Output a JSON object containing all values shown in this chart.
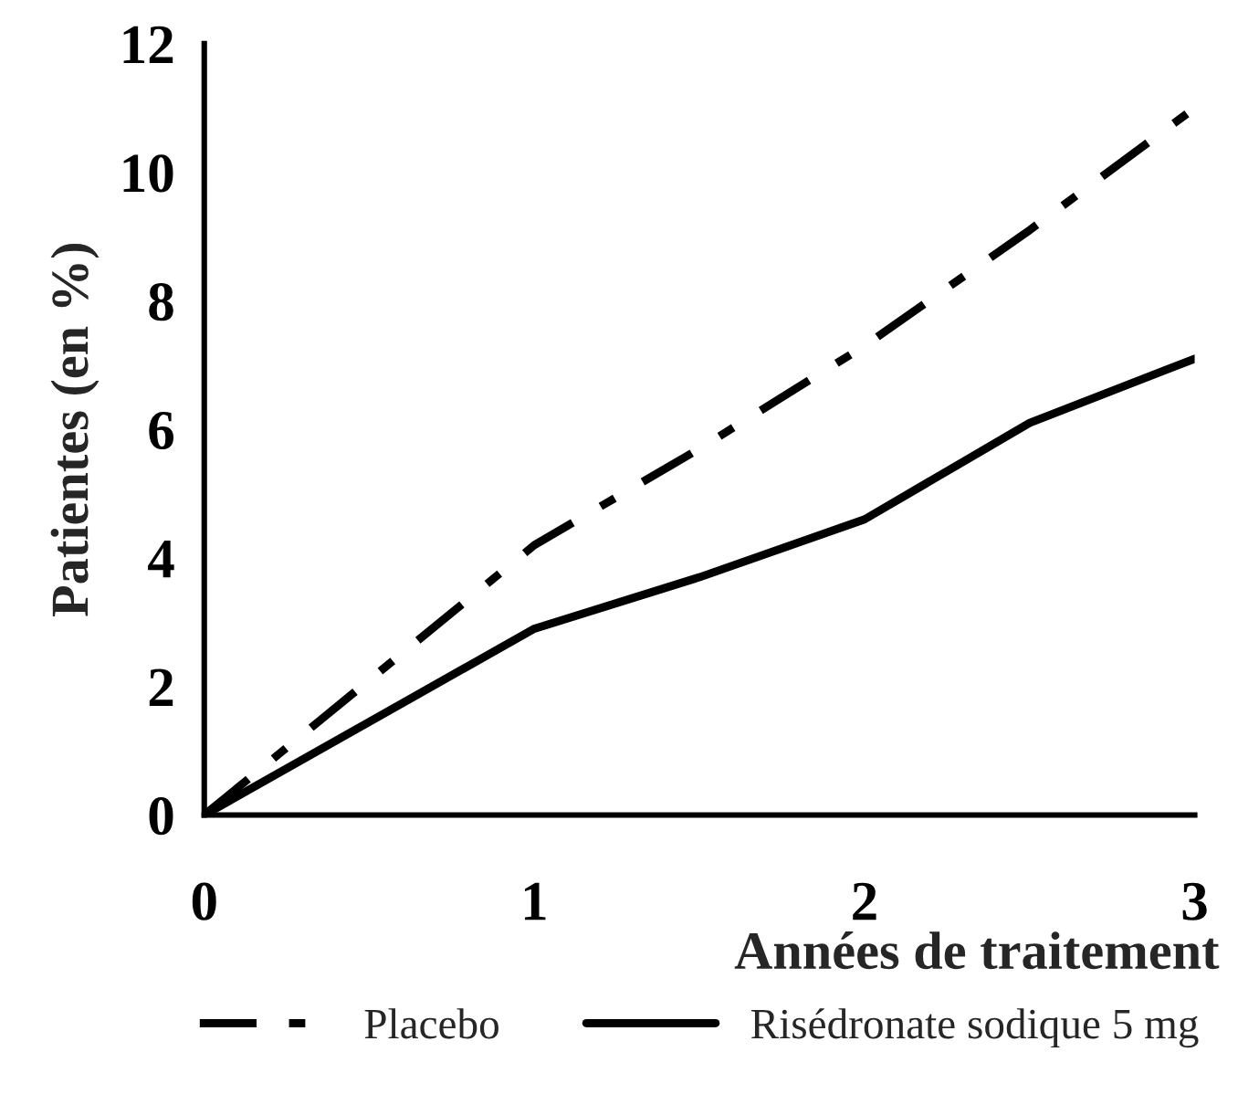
{
  "chart_data": {
    "type": "line",
    "xlabel": "Années de traitement",
    "ylabel": "Patientes (en %)",
    "x": [
      0,
      1,
      1.5,
      2,
      2.5,
      3
    ],
    "series": [
      {
        "name": "Placebo",
        "color": "#000000",
        "line_style": "dashed",
        "values": [
          0,
          4.2,
          5.7,
          7.3,
          9.1,
          11.0
        ]
      },
      {
        "name": "Risédronate sodique 5 mg",
        "color": "#000000",
        "line_style": "solid",
        "values": [
          0,
          2.9,
          3.7,
          4.6,
          6.1,
          7.1
        ]
      }
    ],
    "xlim": [
      0,
      3
    ],
    "ylim": [
      0,
      12
    ],
    "xticks": [
      0,
      1,
      2,
      3
    ],
    "yticks": [
      0,
      2,
      4,
      6,
      8,
      10,
      12
    ],
    "grid": false,
    "legend": "bottom",
    "marker": "none"
  }
}
